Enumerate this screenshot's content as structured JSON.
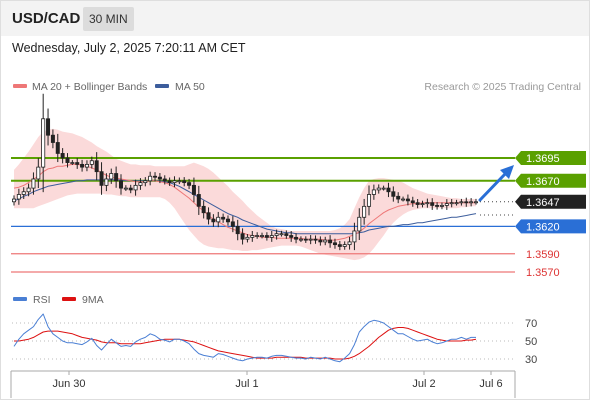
{
  "header": {
    "symbol": "USD/CAD",
    "timeframe": "30 MIN"
  },
  "timestamp": "Wednesday, July 2, 2025 7:20:11 AM CET",
  "legend": {
    "ma20": "MA 20 + Bollinger Bands",
    "ma50": "MA 50",
    "credit": "Research © 2025 Trading Central",
    "rsi": "RSI",
    "rsi_ma": "9MA"
  },
  "colors": {
    "ma20": "#ee7777",
    "ma50": "#3c5d9c",
    "bollinger_fill": "#fbdada",
    "resistance": "#5aa000",
    "pivot": "#2a6fd6",
    "support": "#ee7777",
    "last": "#222222",
    "arrow": "#2a6fd6",
    "rsi": "#4a7fd4",
    "rsi_ma": "#dd1111"
  },
  "chart_data": {
    "type": "candlestick",
    "x_ticks": [
      "Jun 30",
      "Jul 1",
      "Jul 2",
      "Jul 6"
    ],
    "price_levels": [
      {
        "label": "1.3695",
        "value": 1.3695,
        "kind": "resistance"
      },
      {
        "label": "1.3670",
        "value": 1.367,
        "kind": "resistance"
      },
      {
        "label": "1.3647",
        "value": 1.3647,
        "kind": "last"
      },
      {
        "label": "1.3620",
        "value": 1.362,
        "kind": "pivot"
      },
      {
        "label": "1.3590",
        "value": 1.359,
        "kind": "support"
      },
      {
        "label": "1.3570",
        "value": 1.357,
        "kind": "support"
      }
    ],
    "close": [
      1.365,
      1.3655,
      1.3658,
      1.3662,
      1.3672,
      1.3685,
      1.3738,
      1.372,
      1.3712,
      1.37,
      1.3695,
      1.369,
      1.369,
      1.3688,
      1.3685,
      1.3688,
      1.3692,
      1.368,
      1.3665,
      1.3672,
      1.3678,
      1.367,
      1.3662,
      1.3662,
      1.366,
      1.3665,
      1.3668,
      1.367,
      1.3675,
      1.3674,
      1.3672,
      1.367,
      1.3668,
      1.367,
      1.367,
      1.3668,
      1.3665,
      1.3655,
      1.3642,
      1.3635,
      1.3628,
      1.3625,
      1.363,
      1.3628,
      1.3625,
      1.362,
      1.3612,
      1.3606,
      1.3608,
      1.361,
      1.361,
      1.361,
      1.3608,
      1.361,
      1.3612,
      1.3612,
      1.361,
      1.3608,
      1.3606,
      1.3606,
      1.3605,
      1.3606,
      1.3605,
      1.3603,
      1.3605,
      1.3602,
      1.36,
      1.3598,
      1.36,
      1.3603,
      1.3615,
      1.363,
      1.3642,
      1.3655,
      1.366,
      1.3662,
      1.3662,
      1.3658,
      1.3653,
      1.365,
      1.365,
      1.3648,
      1.3646,
      1.3644,
      1.3645,
      1.3646,
      1.3643,
      1.3642,
      1.3643,
      1.3645,
      1.3646,
      1.3646,
      1.3647,
      1.3646,
      1.3647,
      1.3647
    ],
    "ma20": [
      1.3662,
      1.3663,
      1.3665,
      1.3668,
      1.3672,
      1.3675,
      1.368,
      1.3683,
      1.3684,
      1.3686,
      1.3686,
      1.3687,
      1.3688,
      1.3688,
      1.3687,
      1.3686,
      1.3684,
      1.3682,
      1.3679,
      1.3676,
      1.3674,
      1.3673,
      1.3672,
      1.3671,
      1.367,
      1.3669,
      1.3669,
      1.3669,
      1.367,
      1.367,
      1.3669,
      1.3668,
      1.3666,
      1.3663,
      1.3659,
      1.3655,
      1.3651,
      1.3646,
      1.3641,
      1.3637,
      1.3632,
      1.3628,
      1.3625,
      1.3622,
      1.3619,
      1.3617,
      1.3615,
      1.3613,
      1.3611,
      1.361,
      1.3609,
      1.3608,
      1.3608,
      1.3608,
      1.3607,
      1.3607,
      1.3607,
      1.3607,
      1.3607,
      1.3607,
      1.3606,
      1.3606,
      1.3606,
      1.3606,
      1.3605,
      1.3605,
      1.3605,
      1.3606,
      1.3607,
      1.3609,
      1.3611,
      1.3614,
      1.3618,
      1.3623,
      1.3627,
      1.3631,
      1.3635,
      1.3638,
      1.364,
      1.3642,
      1.3643,
      1.3644,
      1.3645,
      1.3645,
      1.3646,
      1.3646,
      1.3646,
      1.3646,
      1.3646,
      1.3646,
      1.3646,
      1.3646,
      1.3646,
      1.3646,
      1.3646,
      1.3646
    ],
    "ma50": [
      1.3648,
      1.365,
      1.3653,
      1.3655,
      1.3658,
      1.366,
      1.3662,
      1.3664,
      1.3665,
      1.3666,
      1.3667,
      1.3668,
      1.3669,
      1.367,
      1.367,
      1.3671,
      1.3671,
      1.3671,
      1.3671,
      1.3671,
      1.3671,
      1.3671,
      1.3671,
      1.367,
      1.367,
      1.367,
      1.367,
      1.367,
      1.367,
      1.367,
      1.367,
      1.3669,
      1.3668,
      1.3666,
      1.3664,
      1.3661,
      1.3658,
      1.3655,
      1.3652,
      1.3649,
      1.3646,
      1.3643,
      1.364,
      1.3637,
      1.3634,
      1.3632,
      1.363,
      1.3627,
      1.3625,
      1.3623,
      1.3621,
      1.3619,
      1.3617,
      1.3616,
      1.3615,
      1.3614,
      1.3613,
      1.3613,
      1.3612,
      1.3612,
      1.3612,
      1.3612,
      1.3612,
      1.3612,
      1.3612,
      1.3612,
      1.3612,
      1.3612,
      1.3612,
      1.3612,
      1.3612,
      1.3613,
      1.3614,
      1.3616,
      1.3617,
      1.3618,
      1.3619,
      1.362,
      1.362,
      1.3621,
      1.3622,
      1.3622,
      1.3623,
      1.3624,
      1.3624,
      1.3625,
      1.3626,
      1.3627,
      1.3628,
      1.3629,
      1.363,
      1.363,
      1.3631,
      1.3632,
      1.3633,
      1.3634
    ],
    "bollinger_upper": [
      1.3682,
      1.3688,
      1.3695,
      1.3702,
      1.371,
      1.3718,
      1.3724,
      1.3726,
      1.3727,
      1.3726,
      1.3724,
      1.3723,
      1.3722,
      1.372,
      1.3718,
      1.3715,
      1.3712,
      1.3708,
      1.3705,
      1.3702,
      1.3698,
      1.3694,
      1.3692,
      1.369,
      1.3688,
      1.3688,
      1.3687,
      1.3687,
      1.3687,
      1.3686,
      1.3686,
      1.3686,
      1.3686,
      1.3686,
      1.3686,
      1.3686,
      1.3688,
      1.369,
      1.3688,
      1.3686,
      1.3683,
      1.3679,
      1.3674,
      1.3669,
      1.3664,
      1.3658,
      1.3653,
      1.3648,
      1.3642,
      1.3637,
      1.3632,
      1.3628,
      1.3624,
      1.362,
      1.3618,
      1.3617,
      1.3616,
      1.3615,
      1.3615,
      1.3615,
      1.3615,
      1.3615,
      1.3615,
      1.3615,
      1.3615,
      1.3615,
      1.3616,
      1.3618,
      1.3622,
      1.3628,
      1.364,
      1.3652,
      1.3662,
      1.367,
      1.3672,
      1.3673,
      1.3673,
      1.3672,
      1.3671,
      1.367,
      1.3668,
      1.3665,
      1.3662,
      1.366,
      1.3658,
      1.3656,
      1.3655,
      1.3654,
      1.3653,
      1.3652,
      1.3651,
      1.3651,
      1.365,
      1.365,
      1.365,
      1.365
    ],
    "bollinger_lower": [
      1.364,
      1.364,
      1.364,
      1.364,
      1.364,
      1.3642,
      1.3644,
      1.3646,
      1.3648,
      1.365,
      1.3652,
      1.3654,
      1.3655,
      1.3656,
      1.3656,
      1.3656,
      1.3656,
      1.3656,
      1.3656,
      1.3655,
      1.3655,
      1.3654,
      1.3653,
      1.3653,
      1.3652,
      1.3652,
      1.3652,
      1.3652,
      1.3652,
      1.3652,
      1.3652,
      1.365,
      1.3646,
      1.364,
      1.3632,
      1.3624,
      1.3616,
      1.361,
      1.3604,
      1.36,
      1.3598,
      1.3597,
      1.3596,
      1.3596,
      1.3595,
      1.3594,
      1.3594,
      1.3593,
      1.3593,
      1.3594,
      1.3594,
      1.3595,
      1.3596,
      1.3597,
      1.3598,
      1.3599,
      1.3599,
      1.3599,
      1.3599,
      1.3598,
      1.3596,
      1.3594,
      1.3592,
      1.359,
      1.3589,
      1.3588,
      1.3587,
      1.3586,
      1.3585,
      1.3584,
      1.3583,
      1.3584,
      1.3586,
      1.359,
      1.3596,
      1.3603,
      1.361,
      1.3618,
      1.3624,
      1.3629,
      1.3633,
      1.3636,
      1.3638,
      1.3639,
      1.364,
      1.364,
      1.364,
      1.364,
      1.364,
      1.364,
      1.364,
      1.364,
      1.3641,
      1.3641,
      1.3642,
      1.3642
    ],
    "rsi_ticks": [
      70,
      50,
      30
    ],
    "rsi": [
      44,
      52,
      58,
      62,
      66,
      74,
      80,
      66,
      58,
      54,
      50,
      48,
      48,
      47,
      46,
      49,
      53,
      45,
      40,
      46,
      52,
      48,
      44,
      45,
      44,
      49,
      52,
      54,
      58,
      56,
      52,
      51,
      49,
      52,
      52,
      50,
      47,
      41,
      36,
      34,
      33,
      32,
      36,
      35,
      33,
      31,
      29,
      28,
      30,
      31,
      32,
      32,
      31,
      33,
      34,
      34,
      33,
      32,
      31,
      31,
      30,
      32,
      31,
      30,
      32,
      30,
      28,
      27,
      31,
      36,
      46,
      60,
      66,
      71,
      73,
      72,
      70,
      66,
      62,
      58,
      58,
      55,
      52,
      50,
      51,
      52,
      49,
      47,
      48,
      50,
      52,
      52,
      54,
      52,
      54,
      54
    ],
    "rsi_ma": [
      50,
      50,
      51,
      52,
      54,
      57,
      60,
      61,
      61,
      61,
      60,
      59,
      58,
      56,
      54,
      53,
      52,
      51,
      49,
      48,
      48,
      48,
      47,
      47,
      47,
      47,
      47,
      48,
      49,
      50,
      51,
      52,
      52,
      52,
      52,
      51,
      50,
      49,
      47,
      45,
      43,
      41,
      39,
      38,
      37,
      36,
      35,
      34,
      33,
      32,
      31,
      31,
      31,
      31,
      32,
      32,
      32,
      32,
      32,
      32,
      31,
      31,
      31,
      31,
      31,
      31,
      30,
      30,
      30,
      31,
      33,
      36,
      40,
      44,
      49,
      54,
      58,
      62,
      64,
      65,
      65,
      64,
      62,
      60,
      58,
      56,
      54,
      52,
      51,
      50,
      50,
      50,
      50,
      51,
      51,
      52
    ]
  }
}
